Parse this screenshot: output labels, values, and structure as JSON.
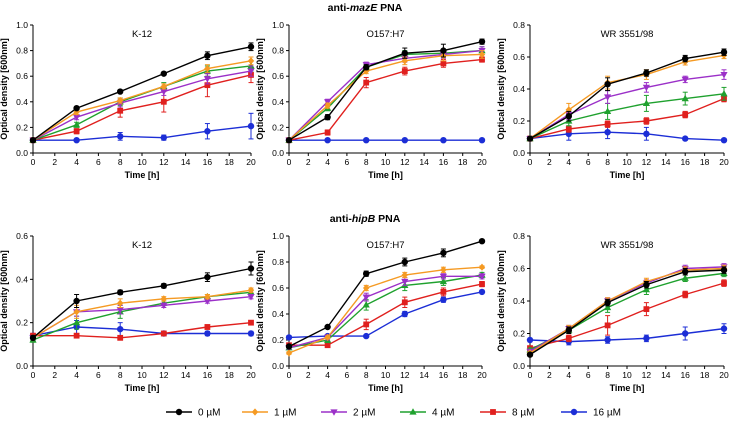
{
  "rows": [
    {
      "title_prefix": "anti-",
      "title_gene": "mazE",
      "title_suffix": " PNA"
    },
    {
      "title_prefix": "anti-",
      "title_gene": "hipB",
      "title_suffix": " PNA"
    }
  ],
  "series_styles": [
    {
      "name": "0 µM",
      "color": "#000000",
      "marker": "circle"
    },
    {
      "name": "1 µM",
      "color": "#f59a23",
      "marker": "diamond"
    },
    {
      "name": "2 µM",
      "color": "#9b30c8",
      "marker": "triangle-down"
    },
    {
      "name": "4 µM",
      "color": "#1fa12e",
      "marker": "triangle-up"
    },
    {
      "name": "8 µM",
      "color": "#e0201e",
      "marker": "square"
    },
    {
      "name": "16 µM",
      "color": "#1c2ed6",
      "marker": "circle"
    }
  ],
  "chart_data": [
    {
      "type": "line",
      "title": "K-12",
      "title_italic": "",
      "row": 0,
      "col": 0,
      "xlabel": "Time [h]",
      "ylabel": "Optical density [600nm]",
      "x": [
        0,
        4,
        8,
        12,
        16,
        20
      ],
      "xlim": [
        0,
        20
      ],
      "xticks": [
        0,
        2,
        4,
        6,
        8,
        10,
        12,
        14,
        16,
        18,
        20
      ],
      "ylim": [
        0,
        1.0
      ],
      "yticks": [
        0,
        0.2,
        0.4,
        0.6,
        0.8,
        1.0
      ],
      "ytick_labels": [
        "0.0",
        "0.2",
        "0.4",
        "0.6",
        "0.8",
        "1.0"
      ],
      "series": [
        {
          "name": "0 µM",
          "values": [
            0.1,
            0.35,
            0.48,
            0.62,
            0.76,
            0.83
          ],
          "errors": [
            0.01,
            0.01,
            0.01,
            0.01,
            0.03,
            0.03
          ]
        },
        {
          "name": "1 µM",
          "values": [
            0.1,
            0.32,
            0.41,
            0.52,
            0.66,
            0.72
          ],
          "errors": [
            0.01,
            0.02,
            0.02,
            0.02,
            0.03,
            0.03
          ]
        },
        {
          "name": "2 µM",
          "values": [
            0.1,
            0.28,
            0.39,
            0.48,
            0.58,
            0.64
          ],
          "errors": [
            0.01,
            0.02,
            0.03,
            0.03,
            0.04,
            0.04
          ]
        },
        {
          "name": "4 µM",
          "values": [
            0.1,
            0.22,
            0.4,
            0.52,
            0.64,
            0.68
          ],
          "errors": [
            0.01,
            0.02,
            0.03,
            0.03,
            0.04,
            0.04
          ]
        },
        {
          "name": "8 µM",
          "values": [
            0.1,
            0.17,
            0.33,
            0.4,
            0.53,
            0.61
          ],
          "errors": [
            0.01,
            0.02,
            0.05,
            0.08,
            0.09,
            0.06
          ]
        },
        {
          "name": "16 µM",
          "values": [
            0.1,
            0.1,
            0.13,
            0.12,
            0.17,
            0.21
          ],
          "errors": [
            0.01,
            0.01,
            0.03,
            0.02,
            0.06,
            0.1
          ]
        }
      ]
    },
    {
      "type": "line",
      "title": "O157:H7",
      "title_italic": "",
      "row": 0,
      "col": 1,
      "xlabel": "Time [h]",
      "ylabel": "Optical density [600nm]",
      "x": [
        0,
        4,
        8,
        12,
        16,
        20
      ],
      "xlim": [
        0,
        20
      ],
      "xticks": [
        0,
        2,
        4,
        6,
        8,
        10,
        12,
        14,
        16,
        18,
        20
      ],
      "ylim": [
        0,
        1.0
      ],
      "yticks": [
        0,
        0.2,
        0.4,
        0.6,
        0.8,
        1.0
      ],
      "ytick_labels": [
        "0.0",
        "0.2",
        "0.4",
        "0.6",
        "0.8",
        "1.0"
      ],
      "series": [
        {
          "name": "0 µM",
          "values": [
            0.1,
            0.28,
            0.67,
            0.78,
            0.8,
            0.87
          ],
          "errors": [
            0.01,
            0.02,
            0.02,
            0.04,
            0.05,
            0.02
          ]
        },
        {
          "name": "1 µM",
          "values": [
            0.1,
            0.37,
            0.64,
            0.72,
            0.76,
            0.77
          ],
          "errors": [
            0.01,
            0.02,
            0.02,
            0.03,
            0.04,
            0.03
          ]
        },
        {
          "name": "2 µM",
          "values": [
            0.1,
            0.4,
            0.69,
            0.74,
            0.77,
            0.8
          ],
          "errors": [
            0.01,
            0.02,
            0.02,
            0.03,
            0.03,
            0.03
          ]
        },
        {
          "name": "4 µM",
          "values": [
            0.1,
            0.35,
            0.67,
            0.77,
            0.78,
            0.8
          ],
          "errors": [
            0.01,
            0.02,
            0.02,
            0.03,
            0.03,
            0.03
          ]
        },
        {
          "name": "8 µM",
          "values": [
            0.1,
            0.16,
            0.55,
            0.64,
            0.7,
            0.73
          ],
          "errors": [
            0.01,
            0.02,
            0.04,
            0.03,
            0.03,
            0.02
          ]
        },
        {
          "name": "16 µM",
          "values": [
            0.1,
            0.1,
            0.1,
            0.1,
            0.1,
            0.1
          ],
          "errors": [
            0.005,
            0.005,
            0.005,
            0.005,
            0.005,
            0.005
          ]
        }
      ]
    },
    {
      "type": "line",
      "title": "WR 3551/98",
      "title_italic": "",
      "row": 0,
      "col": 2,
      "xlabel": "Time [h]",
      "ylabel": "Optical density [600nm]",
      "x": [
        0,
        4,
        8,
        12,
        16,
        20
      ],
      "xlim": [
        0,
        20
      ],
      "xticks": [
        0,
        2,
        4,
        6,
        8,
        10,
        12,
        14,
        16,
        18,
        20
      ],
      "ylim": [
        0,
        0.8
      ],
      "yticks": [
        0,
        0.2,
        0.4,
        0.6,
        0.8
      ],
      "ytick_labels": [
        "0.0",
        "0.2",
        "0.4",
        "0.6",
        "0.8"
      ],
      "series": [
        {
          "name": "0 µM",
          "values": [
            0.09,
            0.23,
            0.43,
            0.5,
            0.59,
            0.63
          ],
          "errors": [
            0.01,
            0.03,
            0.04,
            0.02,
            0.02,
            0.02
          ]
        },
        {
          "name": "1 µM",
          "values": [
            0.09,
            0.27,
            0.44,
            0.49,
            0.57,
            0.61
          ],
          "errors": [
            0.01,
            0.04,
            0.04,
            0.03,
            0.02,
            0.02
          ]
        },
        {
          "name": "2 µM",
          "values": [
            0.09,
            0.24,
            0.35,
            0.41,
            0.46,
            0.49
          ],
          "errors": [
            0.01,
            0.03,
            0.04,
            0.03,
            0.02,
            0.03
          ]
        },
        {
          "name": "4 µM",
          "values": [
            0.09,
            0.2,
            0.26,
            0.31,
            0.34,
            0.37
          ],
          "errors": [
            0.01,
            0.03,
            0.05,
            0.05,
            0.04,
            0.04
          ]
        },
        {
          "name": "8 µM",
          "values": [
            0.09,
            0.15,
            0.18,
            0.2,
            0.24,
            0.34
          ],
          "errors": [
            0.01,
            0.02,
            0.02,
            0.02,
            0.02,
            0.02
          ]
        },
        {
          "name": "16 µM",
          "values": [
            0.09,
            0.12,
            0.13,
            0.12,
            0.09,
            0.08
          ],
          "errors": [
            0.01,
            0.04,
            0.04,
            0.04,
            0.01,
            0.01
          ]
        }
      ]
    },
    {
      "type": "line",
      "title": "K-12",
      "title_italic": "",
      "row": 1,
      "col": 0,
      "xlabel": "Time [h]",
      "ylabel": "Optical density [600nm]",
      "x": [
        0,
        4,
        8,
        12,
        16,
        20
      ],
      "xlim": [
        0,
        20
      ],
      "xticks": [
        0,
        2,
        4,
        6,
        8,
        10,
        12,
        14,
        16,
        18,
        20
      ],
      "ylim": [
        0,
        0.6
      ],
      "yticks": [
        0,
        0.2,
        0.4,
        0.6
      ],
      "ytick_labels": [
        "0.0",
        "0.2",
        "0.4",
        "0.6"
      ],
      "series": [
        {
          "name": "0 µM",
          "values": [
            0.13,
            0.3,
            0.34,
            0.37,
            0.41,
            0.45
          ],
          "errors": [
            0.01,
            0.03,
            0.01,
            0.01,
            0.02,
            0.03
          ]
        },
        {
          "name": "1 µM",
          "values": [
            0.13,
            0.25,
            0.29,
            0.31,
            0.32,
            0.35
          ],
          "errors": [
            0.01,
            0.03,
            0.02,
            0.01,
            0.01,
            0.01
          ]
        },
        {
          "name": "2 µM",
          "values": [
            0.13,
            0.25,
            0.26,
            0.28,
            0.3,
            0.32
          ],
          "errors": [
            0.01,
            0.02,
            0.02,
            0.01,
            0.01,
            0.01
          ]
        },
        {
          "name": "4 µM",
          "values": [
            0.12,
            0.2,
            0.25,
            0.29,
            0.32,
            0.34
          ],
          "errors": [
            0.01,
            0.03,
            0.03,
            0.01,
            0.01,
            0.01
          ]
        },
        {
          "name": "8 µM",
          "values": [
            0.14,
            0.14,
            0.13,
            0.15,
            0.18,
            0.2
          ],
          "errors": [
            0.01,
            0.01,
            0.01,
            0.01,
            0.01,
            0.01
          ]
        },
        {
          "name": "16 µM",
          "values": [
            0.14,
            0.18,
            0.17,
            0.15,
            0.15,
            0.15
          ],
          "errors": [
            0.01,
            0.03,
            0.03,
            0.01,
            0.01,
            0.01
          ]
        }
      ]
    },
    {
      "type": "line",
      "title": "O157:H7",
      "title_italic": "",
      "row": 1,
      "col": 1,
      "xlabel": "Time [h]",
      "ylabel": "Optical density [600nm]",
      "x": [
        0,
        4,
        8,
        12,
        16,
        20
      ],
      "xlim": [
        0,
        20
      ],
      "xticks": [
        0,
        2,
        4,
        6,
        8,
        10,
        12,
        14,
        16,
        18,
        20
      ],
      "ylim": [
        0,
        1.0
      ],
      "yticks": [
        0,
        0.2,
        0.4,
        0.6,
        0.8,
        1.0
      ],
      "ytick_labels": [
        "0.0",
        "0.2",
        "0.4",
        "0.6",
        "0.8",
        "1.0"
      ],
      "series": [
        {
          "name": "0 µM",
          "values": [
            0.15,
            0.3,
            0.71,
            0.8,
            0.87,
            0.96
          ],
          "errors": [
            0.01,
            0.01,
            0.02,
            0.03,
            0.03,
            0.01
          ]
        },
        {
          "name": "1 µM",
          "values": [
            0.1,
            0.22,
            0.6,
            0.7,
            0.74,
            0.76
          ],
          "errors": [
            0.01,
            0.01,
            0.02,
            0.02,
            0.02,
            0.01
          ]
        },
        {
          "name": "2 µM",
          "values": [
            0.14,
            0.22,
            0.53,
            0.65,
            0.69,
            0.69
          ],
          "errors": [
            0.01,
            0.02,
            0.03,
            0.03,
            0.02,
            0.02
          ]
        },
        {
          "name": "4 µM",
          "values": [
            0.14,
            0.2,
            0.47,
            0.62,
            0.65,
            0.7
          ],
          "errors": [
            0.01,
            0.02,
            0.04,
            0.04,
            0.03,
            0.02
          ]
        },
        {
          "name": "8 µM",
          "values": [
            0.16,
            0.16,
            0.32,
            0.49,
            0.57,
            0.63
          ],
          "errors": [
            0.01,
            0.01,
            0.04,
            0.04,
            0.03,
            0.02
          ]
        },
        {
          "name": "16 µM",
          "values": [
            0.22,
            0.23,
            0.23,
            0.4,
            0.51,
            0.57
          ],
          "errors": [
            0.01,
            0.01,
            0.01,
            0.02,
            0.02,
            0.01
          ]
        }
      ]
    },
    {
      "type": "line",
      "title": "WR 3551/98",
      "title_italic": "",
      "row": 1,
      "col": 2,
      "xlabel": "Time [h]",
      "ylabel": "Optical density [600nm]",
      "x": [
        0,
        4,
        8,
        12,
        16,
        20
      ],
      "xlim": [
        0,
        20
      ],
      "xticks": [
        0,
        2,
        4,
        6,
        8,
        10,
        12,
        14,
        16,
        18,
        20
      ],
      "ylim": [
        0,
        0.8
      ],
      "yticks": [
        0,
        0.2,
        0.4,
        0.6,
        0.8
      ],
      "ytick_labels": [
        "0.0",
        "0.2",
        "0.4",
        "0.6",
        "0.8"
      ],
      "series": [
        {
          "name": "0 µM",
          "values": [
            0.07,
            0.22,
            0.39,
            0.5,
            0.58,
            0.59
          ],
          "errors": [
            0.01,
            0.02,
            0.02,
            0.02,
            0.02,
            0.02
          ]
        },
        {
          "name": "1 µM",
          "values": [
            0.08,
            0.23,
            0.4,
            0.52,
            0.59,
            0.6
          ],
          "errors": [
            0.01,
            0.02,
            0.02,
            0.02,
            0.02,
            0.02
          ]
        },
        {
          "name": "2 µM",
          "values": [
            0.09,
            0.23,
            0.4,
            0.51,
            0.6,
            0.61
          ],
          "errors": [
            0.01,
            0.02,
            0.02,
            0.02,
            0.02,
            0.02
          ]
        },
        {
          "name": "4 µM",
          "values": [
            0.1,
            0.22,
            0.36,
            0.47,
            0.54,
            0.57
          ],
          "errors": [
            0.01,
            0.02,
            0.03,
            0.03,
            0.02,
            0.02
          ]
        },
        {
          "name": "8 µM",
          "values": [
            0.11,
            0.17,
            0.25,
            0.35,
            0.44,
            0.51
          ],
          "errors": [
            0.01,
            0.02,
            0.06,
            0.04,
            0.02,
            0.02
          ]
        },
        {
          "name": "16 µM",
          "values": [
            0.16,
            0.15,
            0.16,
            0.17,
            0.2,
            0.23
          ],
          "errors": [
            0.01,
            0.02,
            0.02,
            0.02,
            0.04,
            0.03
          ]
        }
      ]
    }
  ]
}
